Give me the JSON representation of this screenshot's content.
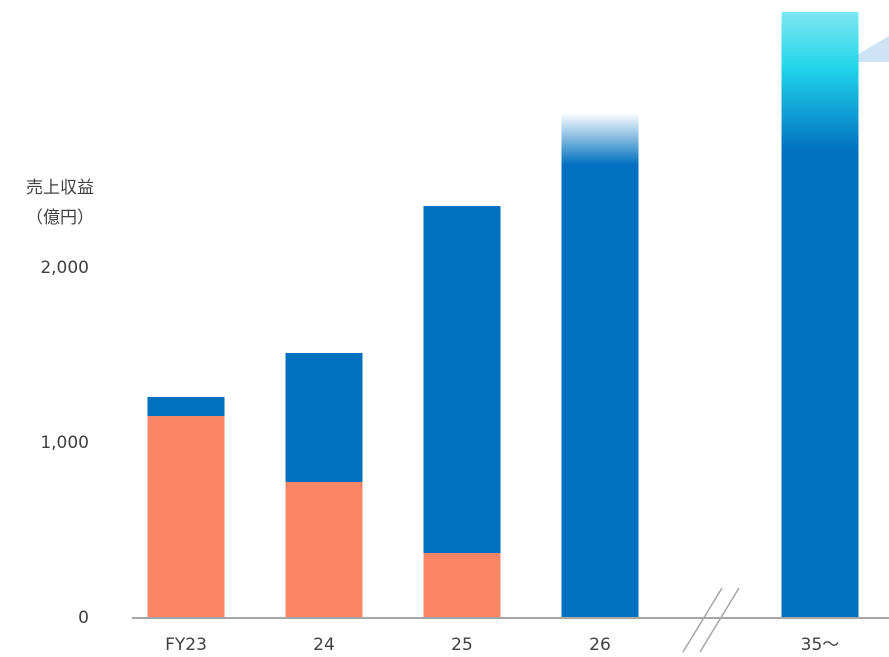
{
  "chart_data": {
    "type": "stacked_bar",
    "y_label": [
      "売上収益",
      "（億円）"
    ],
    "categories": [
      "FY23",
      "24",
      "25",
      "26",
      "35～"
    ],
    "series": [
      {
        "color": "#fa8466",
        "values": [
          1154,
          777,
          371,
          0,
          0
        ]
      },
      {
        "color": "#0070c0",
        "values": [
          109,
          737,
          1983,
          2886,
          3463
        ],
        "fade_colors": [
          null,
          null,
          null,
          "#ffffff",
          "#7ee8f2"
        ]
      }
    ],
    "ylim": [
      0,
      3531
    ],
    "yticks": [
      0,
      {
        "value": 1000,
        "label": "1,000"
      },
      {
        "value": 2000,
        "label": "2,000"
      }
    ]
  }
}
